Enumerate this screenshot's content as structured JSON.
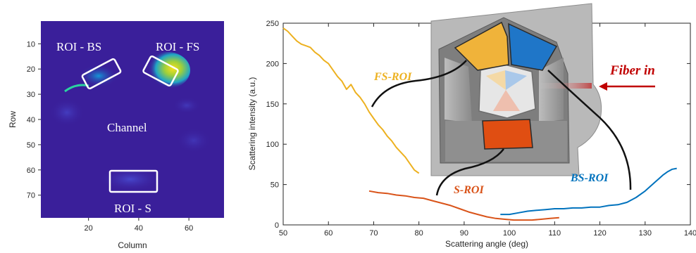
{
  "colors": {
    "heatmap_bg": "#3a1f9a",
    "fs": "#edb120",
    "s": "#d95319",
    "bs": "#0072bd",
    "fiber": "#c00000",
    "device_gray": "#9b9b9b"
  },
  "chart_data": [
    {
      "type": "heatmap",
      "xlabel": "Column",
      "ylabel": "Row",
      "xticks": [
        20,
        40,
        60
      ],
      "yticks": [
        10,
        20,
        30,
        40,
        50,
        60,
        70
      ],
      "xlim": [
        1,
        74
      ],
      "ylim": [
        1,
        79
      ],
      "colormap": "parula",
      "labels": [
        "ROI - BS",
        "ROI - FS",
        "Channel",
        "ROI - S"
      ]
    },
    {
      "type": "line",
      "xlabel": "Scattering angle (deg)",
      "ylabel": "Scattering intensity (a.u.)",
      "xlim": [
        50,
        140
      ],
      "ylim": [
        0,
        250
      ],
      "xticks": [
        50,
        60,
        70,
        80,
        90,
        100,
        110,
        120,
        130,
        140
      ],
      "yticks": [
        0,
        50,
        100,
        150,
        200,
        250
      ],
      "series": [
        {
          "name": "FS-ROI",
          "color": "#edb120",
          "x": [
            50,
            51,
            52,
            53,
            54,
            55,
            56,
            57,
            58,
            59,
            60,
            61,
            62,
            63,
            64,
            65,
            66,
            67,
            68,
            69,
            70,
            71,
            72,
            73,
            74,
            75,
            76,
            77,
            78,
            79,
            80
          ],
          "y": [
            244,
            240,
            234,
            228,
            224,
            222,
            220,
            214,
            210,
            204,
            200,
            192,
            184,
            178,
            168,
            174,
            164,
            158,
            150,
            140,
            132,
            124,
            118,
            110,
            104,
            96,
            90,
            84,
            76,
            68,
            64
          ]
        },
        {
          "name": "S-ROI",
          "color": "#d95319",
          "x": [
            69,
            71,
            73,
            75,
            77,
            79,
            81,
            83,
            85,
            87,
            89,
            91,
            93,
            95,
            97,
            99,
            101,
            103,
            105,
            107,
            109,
            111
          ],
          "y": [
            42,
            40,
            39,
            37,
            36,
            34,
            33,
            30,
            27,
            24,
            20,
            16,
            13,
            10,
            8,
            7,
            6,
            6,
            6,
            7,
            8,
            9
          ]
        },
        {
          "name": "BS-ROI",
          "color": "#0072bd",
          "x": [
            98,
            100,
            102,
            104,
            106,
            108,
            110,
            112,
            114,
            116,
            118,
            120,
            122,
            124,
            126,
            128,
            130,
            132,
            134,
            135,
            136,
            137
          ],
          "y": [
            13,
            13,
            15,
            17,
            18,
            19,
            20,
            20,
            21,
            21,
            22,
            22,
            24,
            25,
            28,
            34,
            42,
            52,
            62,
            66,
            69,
            70
          ]
        }
      ],
      "annotations": [
        "FS-ROI",
        "S-ROI",
        "BS-ROI",
        "Fiber in"
      ]
    }
  ]
}
